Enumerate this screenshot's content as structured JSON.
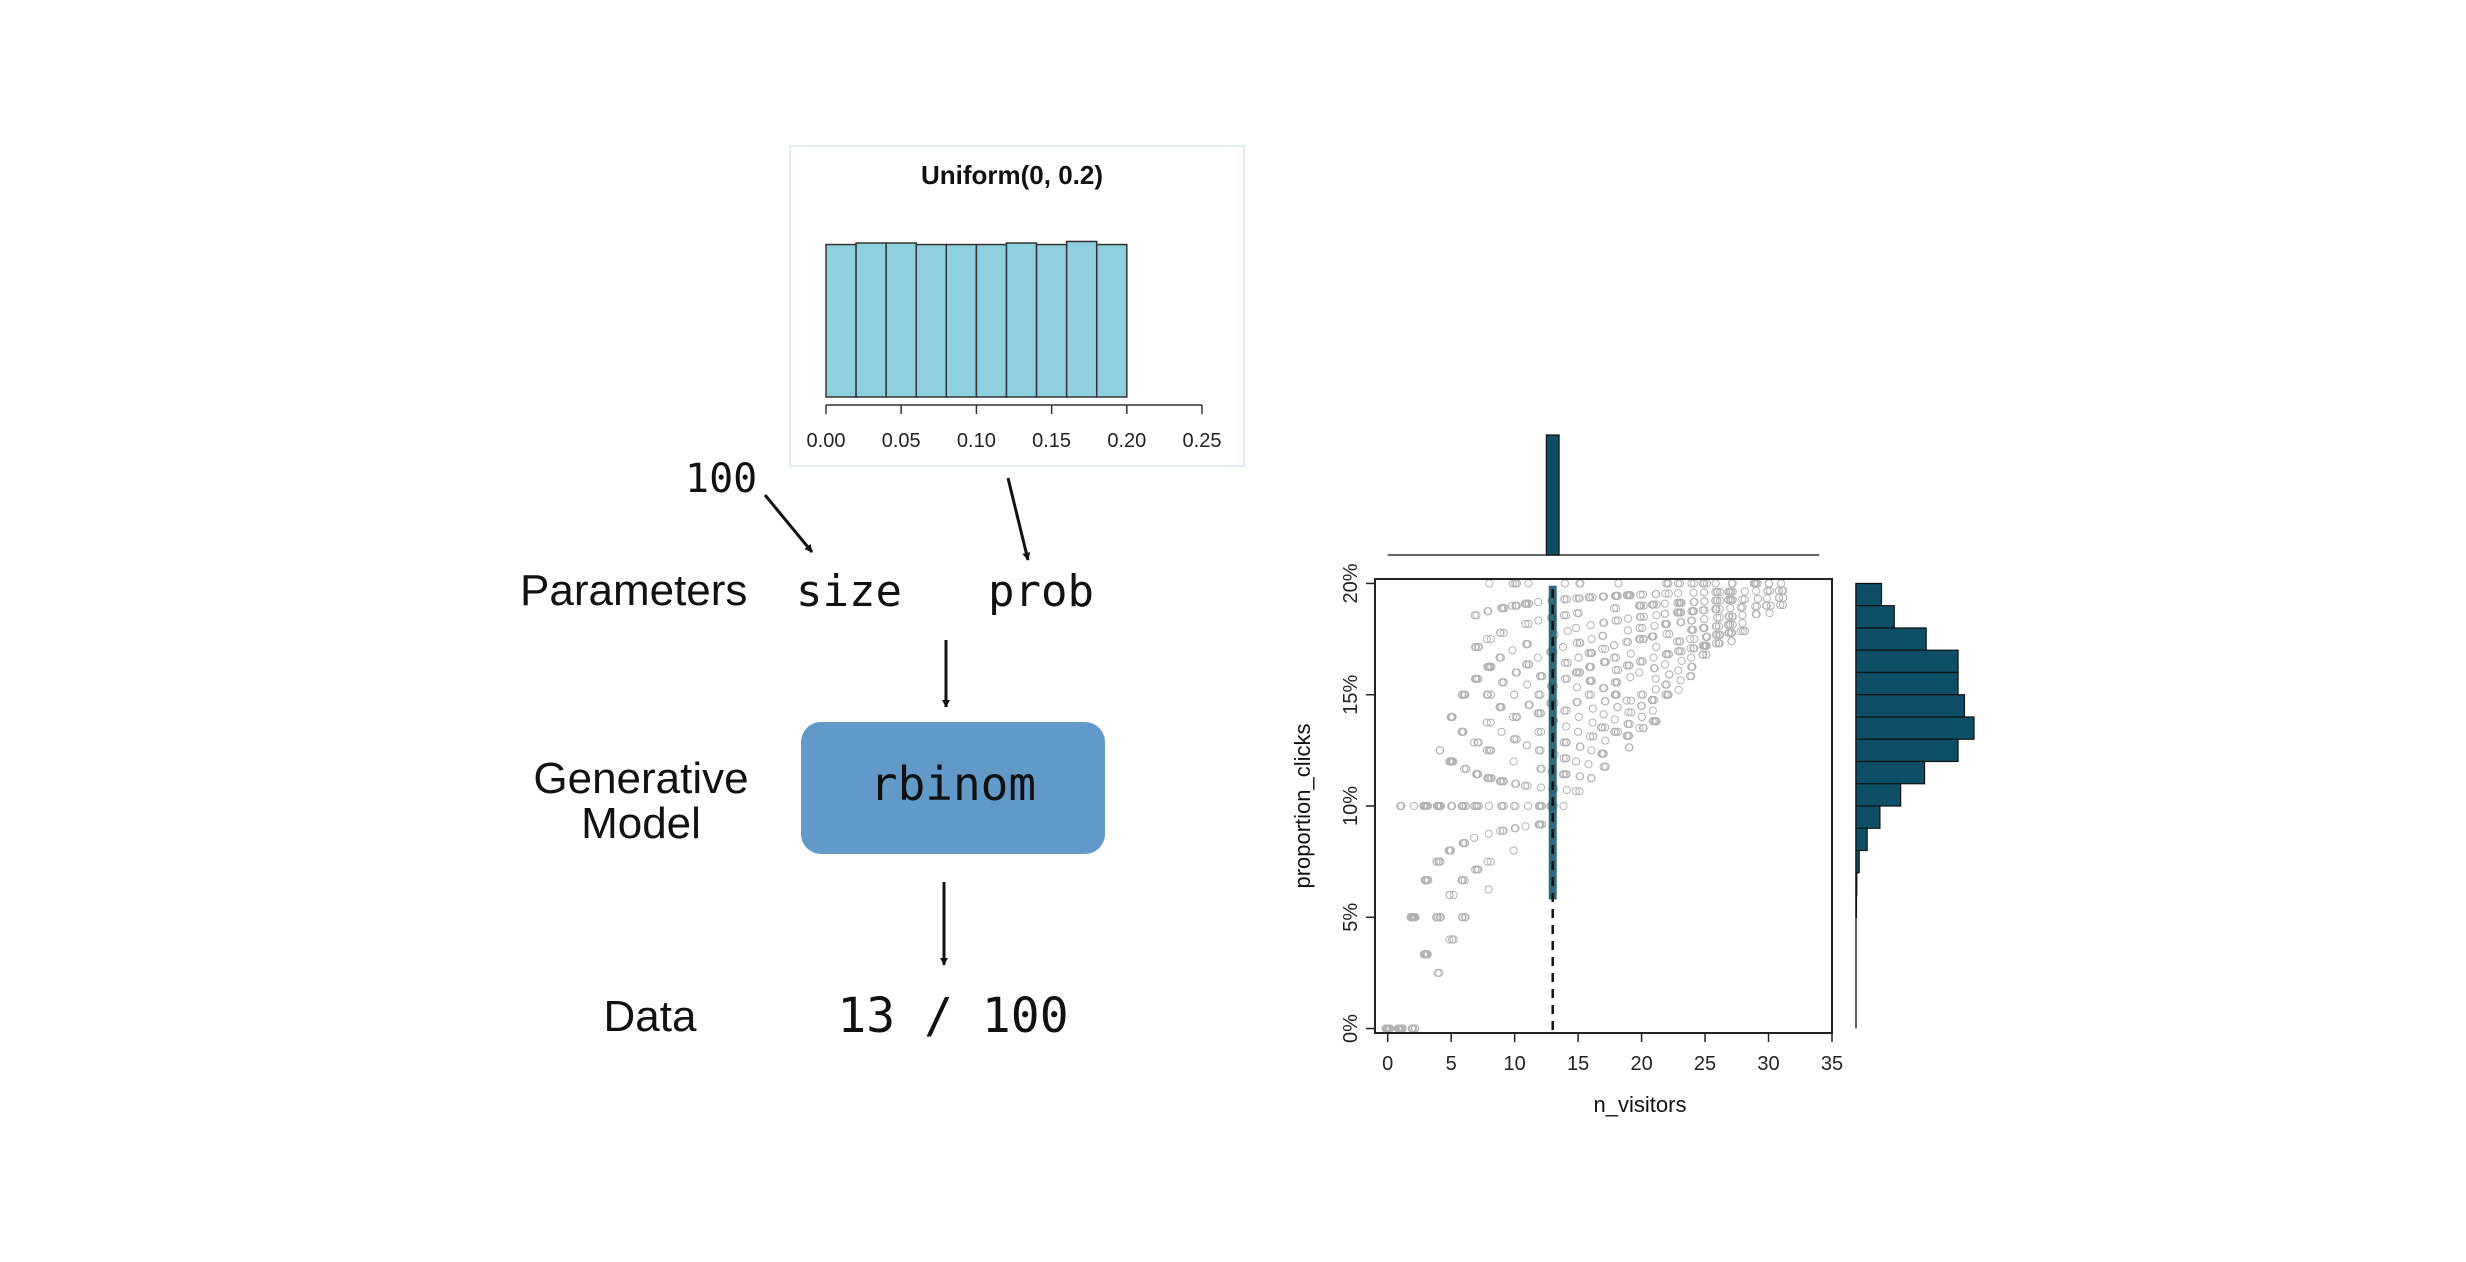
{
  "diagram": {
    "prior_title": "Uniform(0, 0.2)",
    "prior_ticks": [
      "0.00",
      "0.05",
      "0.10",
      "0.15",
      "0.20",
      "0.25"
    ],
    "size_input": "100",
    "parameters_label": "Parameters",
    "param_size": "size",
    "param_prob": "prob",
    "model_label_line1": "Generative",
    "model_label_line2": "Model",
    "model_name": "rbinom",
    "data_label": "Data",
    "data_value": "13 / 100"
  },
  "colors": {
    "prior_bar": "#8ecfe0",
    "model_box": "#6199c9",
    "marginal_bar": "#0d4f66",
    "points": "#b3b3b3"
  },
  "chart_data": [
    {
      "type": "bar",
      "title": "Uniform(0, 0.2)",
      "x": [
        0.01,
        0.03,
        0.05,
        0.07,
        0.09,
        0.11,
        0.13,
        0.15,
        0.17,
        0.19
      ],
      "values": [
        0.99,
        1.0,
        1.0,
        0.99,
        0.99,
        0.99,
        1.0,
        0.99,
        1.01,
        0.99
      ],
      "bin_width": 0.02,
      "xlim": [
        0,
        0.25
      ],
      "x_ticks": [
        0,
        0.05,
        0.1,
        0.15,
        0.2,
        0.25
      ],
      "x_tick_labels": [
        "0.00",
        "0.05",
        "0.10",
        "0.15",
        "0.20",
        "0.25"
      ],
      "xlabel": "",
      "ylabel": ""
    },
    {
      "type": "scatter",
      "xlabel": "n_visitors",
      "ylabel": "proportion_clicks",
      "xlim": [
        -1,
        35
      ],
      "ylim": [
        -0.002,
        0.202
      ],
      "x_ticks": [
        0,
        5,
        10,
        15,
        20,
        25,
        30,
        35
      ],
      "y_ticks": [
        0,
        0.05,
        0.1,
        0.15,
        0.2
      ],
      "y_tick_labels": [
        "0%",
        "5%",
        "10%",
        "15%",
        "20%"
      ],
      "highlight_x": 13,
      "highlight_range": [
        0.058,
        0.199
      ],
      "trend_low": [
        [
          0,
          0.0
        ],
        [
          7,
          0.07
        ],
        [
          12,
          0.1
        ],
        [
          20,
          0.14
        ],
        [
          26,
          0.18
        ],
        [
          31,
          0.2
        ]
      ],
      "trend_high": [
        [
          1,
          0.07
        ],
        [
          5,
          0.15
        ],
        [
          8,
          0.2
        ],
        [
          32,
          0.2
        ]
      ],
      "top_marginal": {
        "x": 13,
        "bin_width": 1
      },
      "right_marginal": {
        "bins": [
          0.19,
          0.18,
          0.17,
          0.16,
          0.15,
          0.14,
          0.13,
          0.12,
          0.11,
          0.1,
          0.09,
          0.08,
          0.07,
          0.06,
          0.05
        ],
        "bin_width": 0.01,
        "counts": [
          16,
          24,
          44,
          64,
          64,
          68,
          74,
          64,
          43,
          28,
          15,
          7,
          2,
          0.5,
          0.3
        ]
      }
    }
  ]
}
